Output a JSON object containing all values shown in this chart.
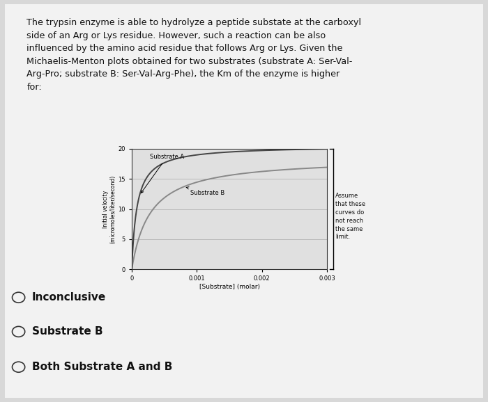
{
  "background_color": "#d8d8d8",
  "card_color": "#f2f2f2",
  "header_text": "The trypsin enzyme is able to hydrolyze a peptide substate at the carboxyl\nside of an Arg or Lys residue. However, such a reaction can be also\ninfluenced by the amino acid residue that follows Arg or Lys. Given the\nMichaelis-Menton plots obtained for two substrates (substrate A: Ser-Val-\nArg-Pro; substrate B: Ser-Val-Arg-Phe), the Km of the enzyme is higher\nfor:",
  "plot_xlabel": "[Substrate] (molar)",
  "plot_ylabel": "Initial velocity\n(micromoles/liter/second)",
  "plot_xlim": [
    0,
    0.003
  ],
  "plot_ylim": [
    0,
    20
  ],
  "plot_yticks": [
    0,
    5,
    10,
    15,
    20
  ],
  "plot_xticks": [
    0,
    0.001,
    0.002,
    0.003
  ],
  "substrate_A_label": "Substrate A",
  "substrate_B_label": "Substrate B",
  "substrate_A_vmax": 20.5,
  "substrate_A_km": 8e-05,
  "substrate_B_vmax": 18.5,
  "substrate_B_km": 0.00028,
  "annotation_text": "Assume\nthat these\ncurves do\nnot reach\nthe same\nlimit.",
  "choices": [
    "Inconclusive",
    "Substrate B",
    "Both Substrate A and B"
  ],
  "curve_color_A": "#444444",
  "curve_color_B": "#888888",
  "plot_bg": "#e0e0e0",
  "plot_border": "#333333",
  "grid_color": "#aaaaaa"
}
